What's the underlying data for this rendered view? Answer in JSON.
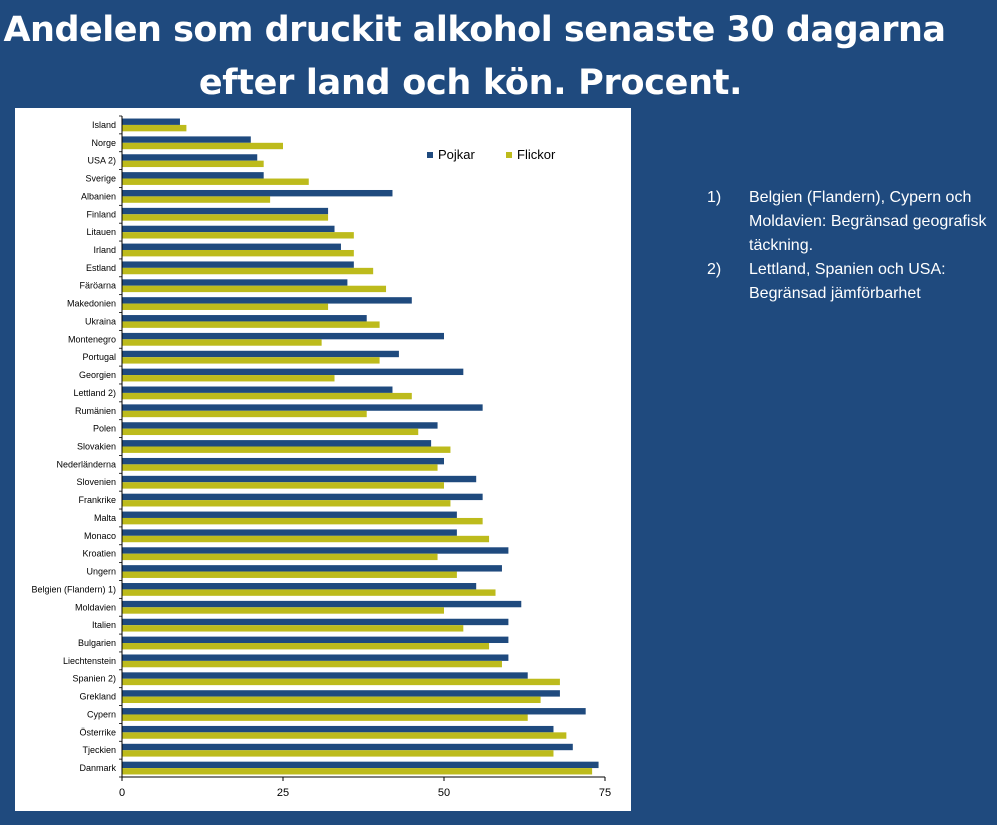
{
  "title": {
    "line1": "Andelen som druckit alkohol senaste 30 dagarna",
    "line2": "efter land och kön. Procent."
  },
  "notes": [
    {
      "num": "1)",
      "text": "Belgien (Flandern), Cypern och Moldavien: Begränsad geografisk täckning."
    },
    {
      "num": "2)",
      "text": "Lettland, Spanien och USA: Begränsad jämförbarhet"
    }
  ],
  "colors": {
    "pojkar": "#1F4A7E",
    "flickor": "#BDBB1C"
  },
  "chart_data": {
    "type": "bar",
    "orientation": "horizontal",
    "xlim": [
      0,
      75
    ],
    "xticks": [
      0,
      25,
      50,
      75
    ],
    "grid": false,
    "legend_position": "top-right",
    "categories": [
      "Island",
      "Norge",
      "USA 2)",
      "Sverige",
      "Albanien",
      "Finland",
      "Litauen",
      "Irland",
      "Estland",
      "Färöarna",
      "Makedonien",
      "Ukraina",
      "Montenegro",
      "Portugal",
      "Georgien",
      "Lettland 2)",
      "Rumänien",
      "Polen",
      "Slovakien",
      "Nederländerna",
      "Slovenien",
      "Frankrike",
      "Malta",
      "Monaco",
      "Kroatien",
      "Ungern",
      "Belgien (Flandern) 1)",
      "Moldavien",
      "Italien",
      "Bulgarien",
      "Liechtenstein",
      "Spanien 2)",
      "Grekland",
      "Cypern",
      "Österrike",
      "Tjeckien",
      "Danmark"
    ],
    "series": [
      {
        "name": "Pojkar",
        "color": "#1F4A7E",
        "values": [
          9,
          20,
          21,
          22,
          42,
          32,
          33,
          34,
          36,
          35,
          45,
          38,
          50,
          43,
          53,
          42,
          56,
          49,
          48,
          50,
          55,
          56,
          52,
          52,
          60,
          59,
          55,
          62,
          60,
          60,
          60,
          63,
          68,
          72,
          67,
          70,
          74
        ]
      },
      {
        "name": "Flickor",
        "color": "#BDBB1C",
        "values": [
          10,
          25,
          22,
          29,
          23,
          32,
          36,
          36,
          39,
          41,
          32,
          40,
          31,
          40,
          33,
          45,
          38,
          46,
          51,
          49,
          50,
          51,
          56,
          57,
          49,
          52,
          58,
          50,
          53,
          57,
          59,
          68,
          65,
          63,
          69,
          67,
          73
        ]
      }
    ]
  }
}
